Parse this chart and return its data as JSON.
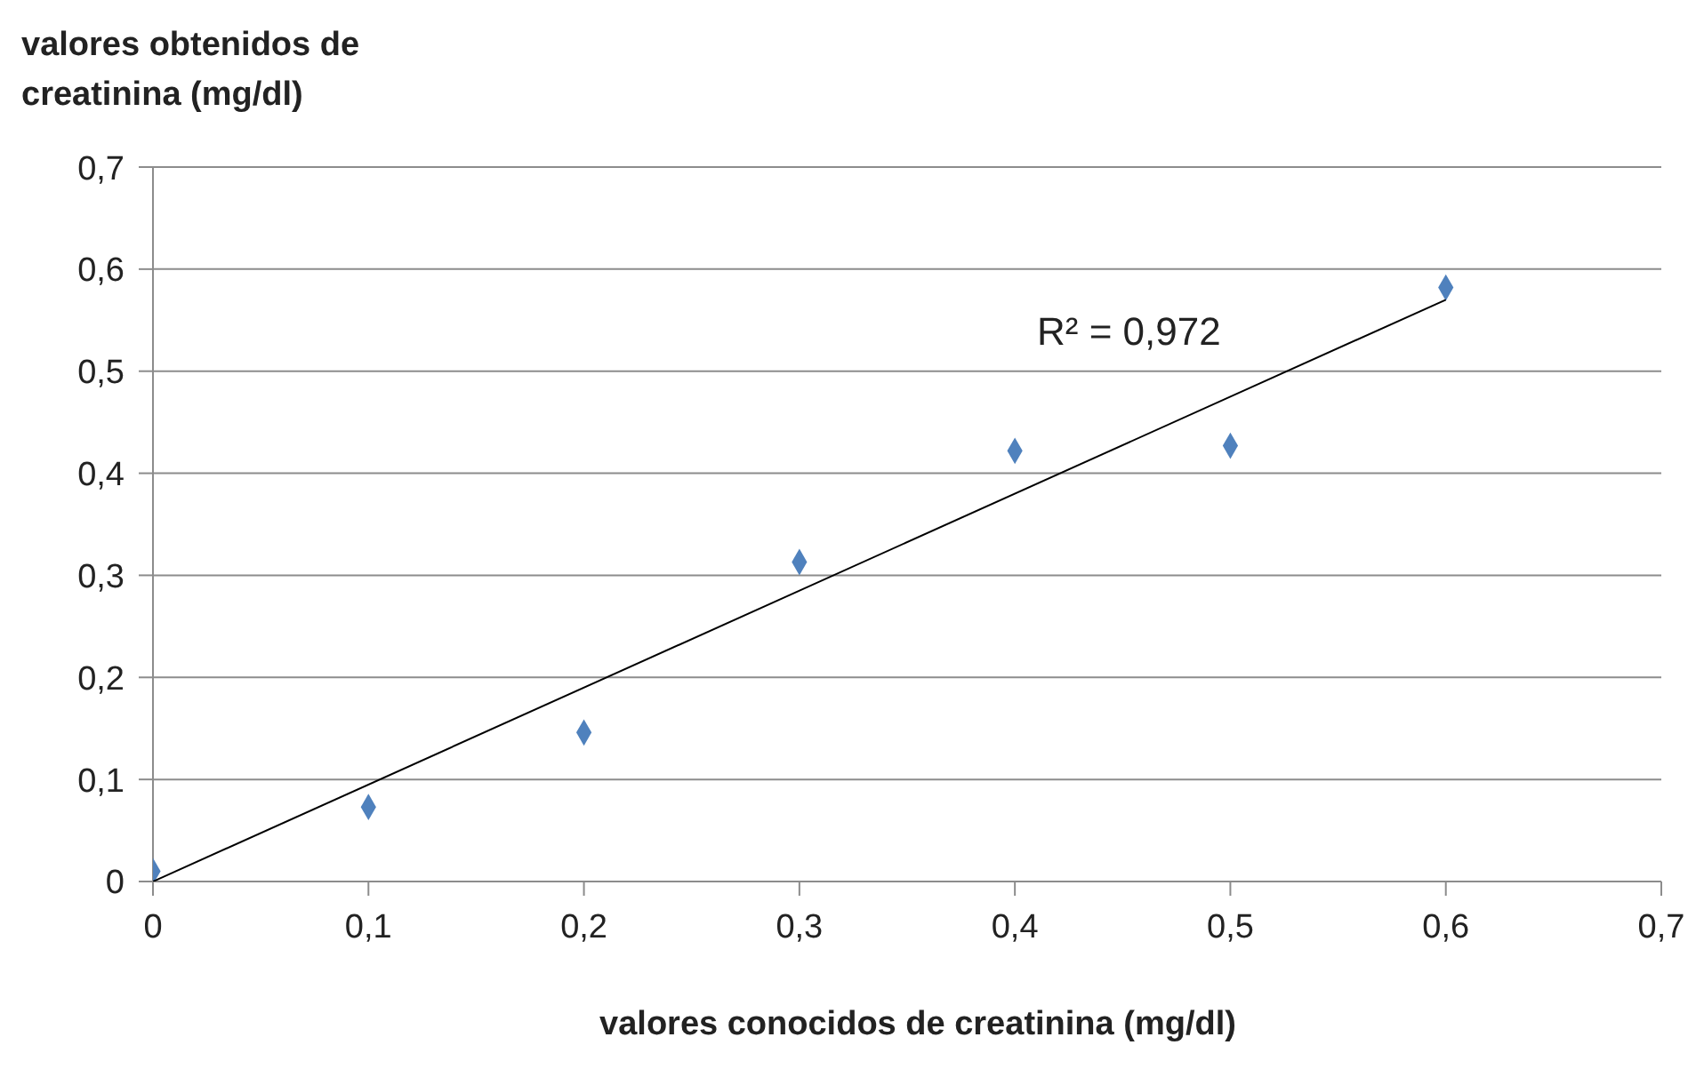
{
  "chart_data": {
    "type": "scatter",
    "xlabel": "valores conocidos de creatinina (mg/dl)",
    "ylabel": "valores obtenidos de creatinina (mg/dl)",
    "series": [
      {
        "color": "#4f81bd",
        "marker": "diamond",
        "x": [
          0,
          0.1,
          0.2,
          0.3,
          0.4,
          0.5,
          0.6
        ],
        "values": [
          0.01,
          0.073,
          0.146,
          0.313,
          0.422,
          0.427,
          0.582
        ]
      },
      {
        "type": "line",
        "color": "#000000",
        "marker": "none",
        "x": [
          0,
          0.6
        ],
        "values": [
          0,
          0.57
        ]
      }
    ],
    "annotations": [
      "R² = 0,972"
    ],
    "xlim": [
      0,
      0.7
    ],
    "ylim": [
      0,
      0.7
    ],
    "xticks": [
      0,
      {
        "value": 0.1,
        "label": "0,1"
      },
      {
        "value": 0.2,
        "label": "0,2"
      },
      {
        "value": 0.3,
        "label": "0,3"
      },
      {
        "value": 0.4,
        "label": "0,4"
      },
      {
        "value": 0.5,
        "label": "0,5"
      },
      {
        "value": 0.6,
        "label": "0,6"
      },
      {
        "value": 0.7,
        "label": "0,7"
      }
    ],
    "yticks": [
      0,
      {
        "value": 0.1,
        "label": "0,1"
      },
      {
        "value": 0.2,
        "label": "0,2"
      },
      {
        "value": 0.3,
        "label": "0,3"
      },
      {
        "value": 0.4,
        "label": "0,4"
      },
      {
        "value": 0.5,
        "label": "0,5"
      },
      {
        "value": 0.6,
        "label": "0,6"
      },
      {
        "value": 0.7,
        "label": "0,7"
      }
    ],
    "grid": "y",
    "legend": false
  }
}
